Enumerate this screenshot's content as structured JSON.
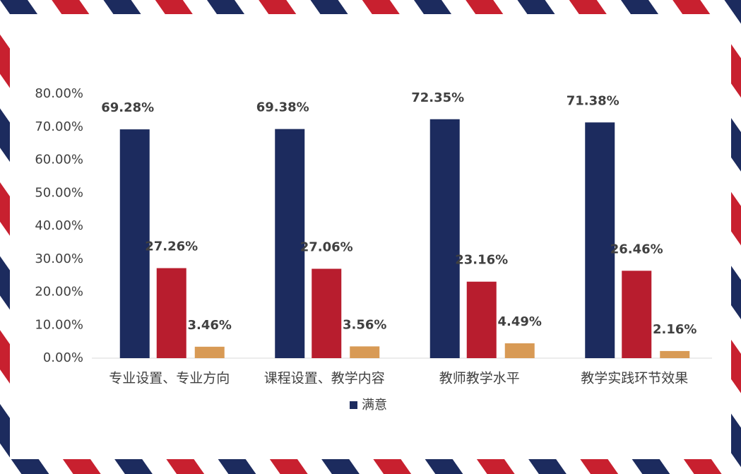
{
  "chart_data": {
    "type": "bar",
    "categories": [
      "专业设置、专业方向",
      "课程设置、教学内容",
      "教师教学水平",
      "教学实践环节效果"
    ],
    "series": [
      {
        "name": "满意",
        "color": "#1c2b5e",
        "values": [
          69.28,
          69.38,
          72.35,
          71.38
        ],
        "value_labels": [
          "69.28%",
          "69.38%",
          "72.35%",
          "71.38%"
        ]
      },
      {
        "color": "#b81d2e",
        "values": [
          27.26,
          27.06,
          23.16,
          26.46
        ],
        "value_labels": [
          "27.26%",
          "27.06%",
          "23.16%",
          "26.46%"
        ]
      },
      {
        "color": "#d89a55",
        "values": [
          3.46,
          3.56,
          4.49,
          2.16
        ],
        "value_labels": [
          "3.46%",
          "3.56%",
          "4.49%",
          "2.16%"
        ]
      }
    ],
    "ylim": [
      0,
      80
    ],
    "yticks": [
      {
        "value": 0,
        "label": "0.00%"
      },
      {
        "value": 10,
        "label": "10.00%"
      },
      {
        "value": 20,
        "label": "20.00%"
      },
      {
        "value": 30,
        "label": "30.00%"
      },
      {
        "value": 40,
        "label": "40.00%"
      },
      {
        "value": 50,
        "label": "50.00%"
      },
      {
        "value": 60,
        "label": "60.00%"
      },
      {
        "value": 70,
        "label": "70.00%"
      },
      {
        "value": 80,
        "label": "80.00%"
      }
    ],
    "grid": false
  }
}
